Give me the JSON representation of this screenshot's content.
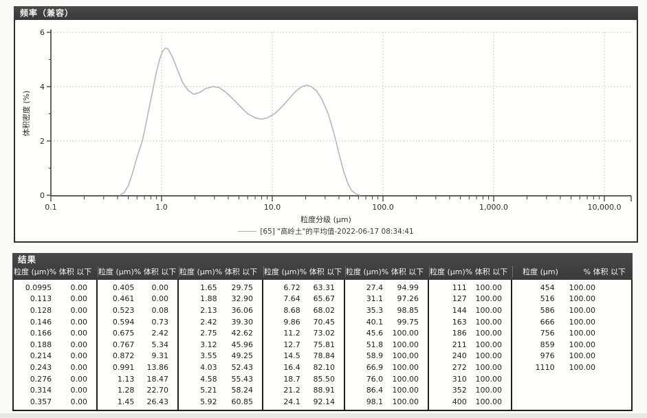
{
  "chart_panel": {
    "title": "频率（兼容）",
    "xlabel": "粒度分级 (μm)",
    "ylabel": "体积密度 (%)",
    "legend_label": "[65] \"高岭土\"的平均值-2022-06-17 08:34:41",
    "xticks": [
      "0.1",
      "1.0",
      "10.0",
      "100.0",
      "1,000.0",
      "10,000.0"
    ],
    "yticks": [
      "0",
      "2",
      "4",
      "6"
    ],
    "curve_color": "#b5bbbe",
    "grid_color": "#bdbdbd",
    "axis_color": "#3c3c3c",
    "titlebar_color": "#3d3d3d"
  },
  "chart_data": {
    "type": "line",
    "title": "频率（兼容）",
    "xlabel": "粒度分级 (μm)",
    "ylabel": "体积密度 (%)",
    "x_scale": "log",
    "xlim": [
      0.1,
      10000
    ],
    "ylim": [
      0,
      6
    ],
    "grid": true,
    "legend_position": "bottom",
    "series": [
      {
        "name": "[65] \"高岭土\"的平均值-2022-06-17 08:34:41",
        "points": [
          [
            0.42,
            0.0
          ],
          [
            0.46,
            0.1
          ],
          [
            0.5,
            0.35
          ],
          [
            0.55,
            0.85
          ],
          [
            0.6,
            1.4
          ],
          [
            0.67,
            2.0
          ],
          [
            0.72,
            2.6
          ],
          [
            0.78,
            3.3
          ],
          [
            0.84,
            3.95
          ],
          [
            0.9,
            4.55
          ],
          [
            0.96,
            5.0
          ],
          [
            1.02,
            5.3
          ],
          [
            1.08,
            5.42
          ],
          [
            1.15,
            5.38
          ],
          [
            1.25,
            5.1
          ],
          [
            1.4,
            4.6
          ],
          [
            1.55,
            4.15
          ],
          [
            1.75,
            3.85
          ],
          [
            1.95,
            3.72
          ],
          [
            2.2,
            3.78
          ],
          [
            2.5,
            3.93
          ],
          [
            2.9,
            4.0
          ],
          [
            3.3,
            3.97
          ],
          [
            3.8,
            3.8
          ],
          [
            4.4,
            3.55
          ],
          [
            5.2,
            3.25
          ],
          [
            6.0,
            3.0
          ],
          [
            7.0,
            2.85
          ],
          [
            8.0,
            2.8
          ],
          [
            9.0,
            2.85
          ],
          [
            10.5,
            3.0
          ],
          [
            12.5,
            3.3
          ],
          [
            14.5,
            3.6
          ],
          [
            16.5,
            3.85
          ],
          [
            18.5,
            4.0
          ],
          [
            20.5,
            4.05
          ],
          [
            22.5,
            4.0
          ],
          [
            25,
            3.85
          ],
          [
            28,
            3.55
          ],
          [
            32,
            3.0
          ],
          [
            36,
            2.3
          ],
          [
            40,
            1.55
          ],
          [
            44,
            0.9
          ],
          [
            48,
            0.45
          ],
          [
            52,
            0.18
          ],
          [
            57,
            0.05
          ],
          [
            62,
            0.0
          ]
        ]
      }
    ]
  },
  "results": {
    "title": "结果",
    "size_header": "粒度 (μm)",
    "pct_header": "% 体积 以下",
    "groups": [
      [
        [
          "0.0995",
          "0.00"
        ],
        [
          "0.113",
          "0.00"
        ],
        [
          "0.128",
          "0.00"
        ],
        [
          "0.146",
          "0.00"
        ],
        [
          "0.166",
          "0.00"
        ],
        [
          "0.188",
          "0.00"
        ],
        [
          "0.214",
          "0.00"
        ],
        [
          "0.243",
          "0.00"
        ],
        [
          "0.276",
          "0.00"
        ],
        [
          "0.314",
          "0.00"
        ],
        [
          "0.357",
          "0.00"
        ]
      ],
      [
        [
          "0.405",
          "0.00"
        ],
        [
          "0.461",
          "0.00"
        ],
        [
          "0.523",
          "0.08"
        ],
        [
          "0.594",
          "0.73"
        ],
        [
          "0.675",
          "2.42"
        ],
        [
          "0.767",
          "5.34"
        ],
        [
          "0.872",
          "9.31"
        ],
        [
          "0.991",
          "13.86"
        ],
        [
          "1.13",
          "18.47"
        ],
        [
          "1.28",
          "22.70"
        ],
        [
          "1.45",
          "26.43"
        ]
      ],
      [
        [
          "1.65",
          "29.75"
        ],
        [
          "1.88",
          "32.90"
        ],
        [
          "2.13",
          "36.06"
        ],
        [
          "2.42",
          "39.30"
        ],
        [
          "2.75",
          "42.62"
        ],
        [
          "3.12",
          "45.96"
        ],
        [
          "3.55",
          "49.25"
        ],
        [
          "4.03",
          "52.43"
        ],
        [
          "4.58",
          "55.43"
        ],
        [
          "5.21",
          "58.24"
        ],
        [
          "5.92",
          "60.85"
        ]
      ],
      [
        [
          "6.72",
          "63.31"
        ],
        [
          "7.64",
          "65.67"
        ],
        [
          "8.68",
          "68.02"
        ],
        [
          "9.86",
          "70.45"
        ],
        [
          "11.2",
          "73.02"
        ],
        [
          "12.7",
          "75.81"
        ],
        [
          "14.5",
          "78.84"
        ],
        [
          "16.4",
          "82.10"
        ],
        [
          "18.7",
          "85.50"
        ],
        [
          "21.2",
          "88.91"
        ],
        [
          "24.1",
          "92.14"
        ]
      ],
      [
        [
          "27.4",
          "94.99"
        ],
        [
          "31.1",
          "97.26"
        ],
        [
          "35.3",
          "98.85"
        ],
        [
          "40.1",
          "99.75"
        ],
        [
          "45.6",
          "100.00"
        ],
        [
          "51.8",
          "100.00"
        ],
        [
          "58.9",
          "100.00"
        ],
        [
          "66.9",
          "100.00"
        ],
        [
          "76.0",
          "100.00"
        ],
        [
          "86.4",
          "100.00"
        ],
        [
          "98.1",
          "100.00"
        ]
      ],
      [
        [
          "111",
          "100.00"
        ],
        [
          "127",
          "100.00"
        ],
        [
          "144",
          "100.00"
        ],
        [
          "163",
          "100.00"
        ],
        [
          "186",
          "100.00"
        ],
        [
          "211",
          "100.00"
        ],
        [
          "240",
          "100.00"
        ],
        [
          "272",
          "100.00"
        ],
        [
          "310",
          "100.00"
        ],
        [
          "352",
          "100.00"
        ],
        [
          "400",
          "100.00"
        ]
      ],
      [
        [
          "454",
          "100.00"
        ],
        [
          "516",
          "100.00"
        ],
        [
          "586",
          "100.00"
        ],
        [
          "666",
          "100.00"
        ],
        [
          "756",
          "100.00"
        ],
        [
          "859",
          "100.00"
        ],
        [
          "976",
          "100.00"
        ],
        [
          "1110",
          "100.00"
        ]
      ]
    ]
  }
}
